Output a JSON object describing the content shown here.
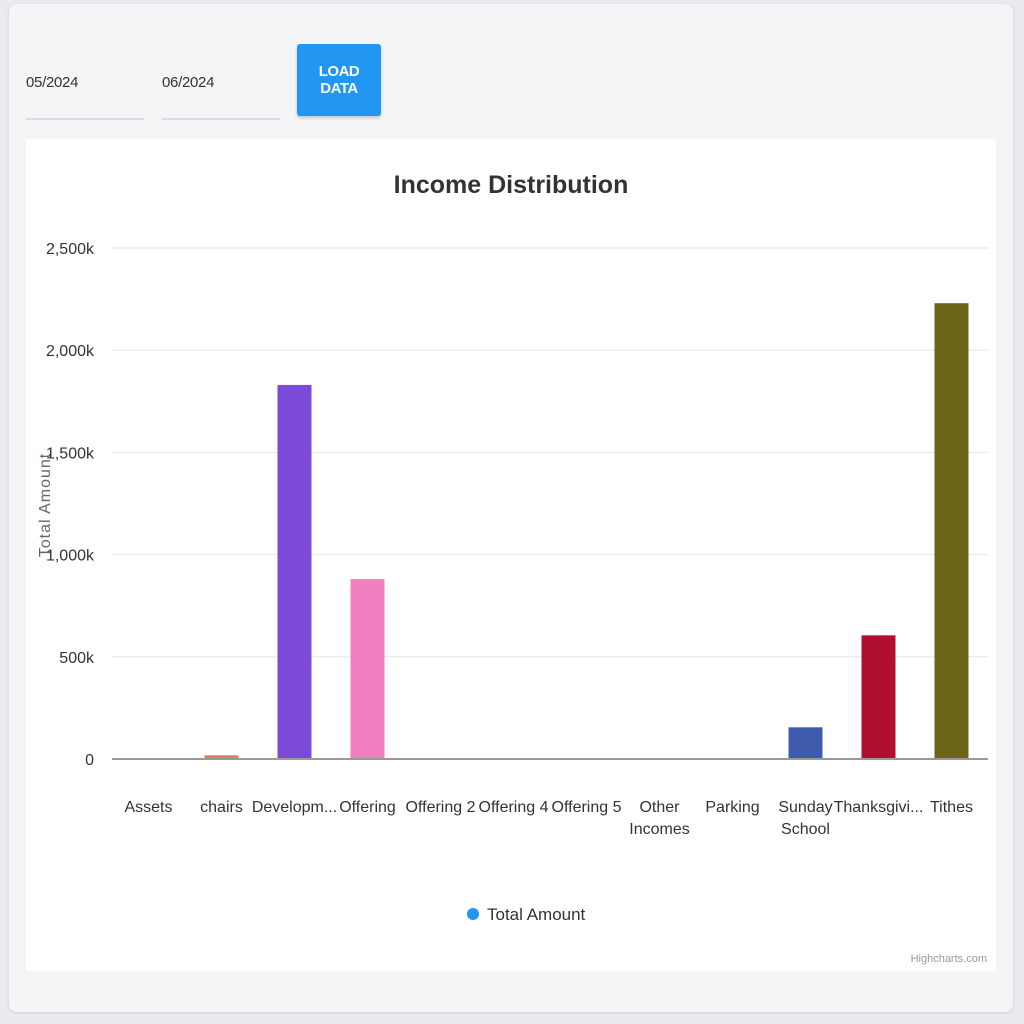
{
  "filters": {
    "start_month": "05/2024",
    "end_month": "06/2024",
    "load_label": "LOAD DATA"
  },
  "credits": "Highcharts.com",
  "chart_data": {
    "type": "bar",
    "title": "Income Distribution",
    "xlabel": "",
    "ylabel": "Total Amount",
    "ylim": [
      0,
      2500000
    ],
    "yticks": [
      0,
      500000,
      1000000,
      1500000,
      2000000,
      2500000
    ],
    "ytick_labels": [
      "0",
      "500k",
      "1,000k",
      "1,500k",
      "2,000k",
      "2,500k"
    ],
    "grid": true,
    "legend_position": "bottom-center",
    "categories": [
      [
        "Assets"
      ],
      [
        "chairs"
      ],
      [
        "Developm..."
      ],
      [
        "Offering"
      ],
      [
        "Offering 2"
      ],
      [
        "Offering 4"
      ],
      [
        "Offering 5"
      ],
      [
        "Other",
        "Incomes"
      ],
      [
        "Parking"
      ],
      [
        "Sunday",
        "School"
      ],
      [
        "Thanksgivi..."
      ],
      [
        "Tithes"
      ]
    ],
    "series": [
      {
        "name": "Total Amount",
        "legend_color": "#2196f3",
        "values": [
          3000,
          18000,
          1830000,
          880000,
          2000,
          3000,
          4000,
          1000,
          2000,
          155000,
          605000,
          2230000
        ],
        "colors": [
          "#9aa3b0",
          "#e07a5f",
          "#7b4bd8",
          "#f080c0",
          "#c77ad6",
          "#9b6fd0",
          "#8a9be0",
          "#8fb8a0",
          "#6fa8a8",
          "#3d5aad",
          "#b01030",
          "#6b6518"
        ]
      }
    ]
  }
}
